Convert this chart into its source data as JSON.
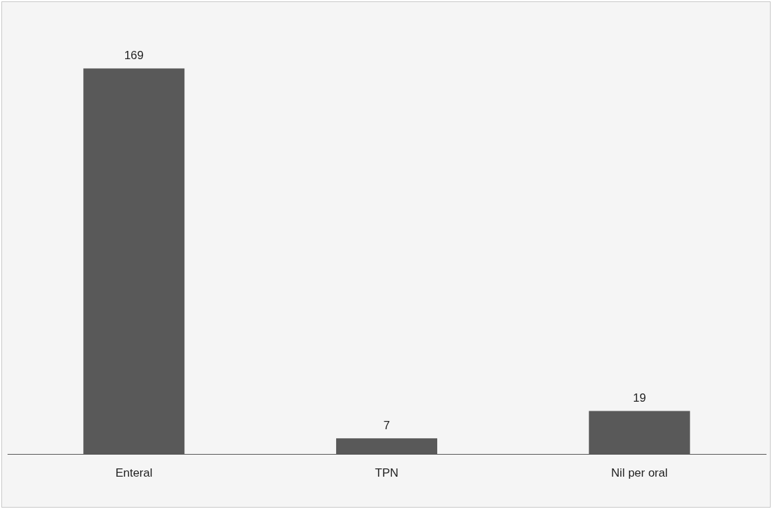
{
  "chart_data": {
    "type": "bar",
    "categories": [
      "Enteral",
      "TPN",
      "Nil per oral"
    ],
    "values": [
      169,
      7,
      19
    ],
    "color": "#595959",
    "data_labels": true,
    "grid": false,
    "legend": false
  }
}
